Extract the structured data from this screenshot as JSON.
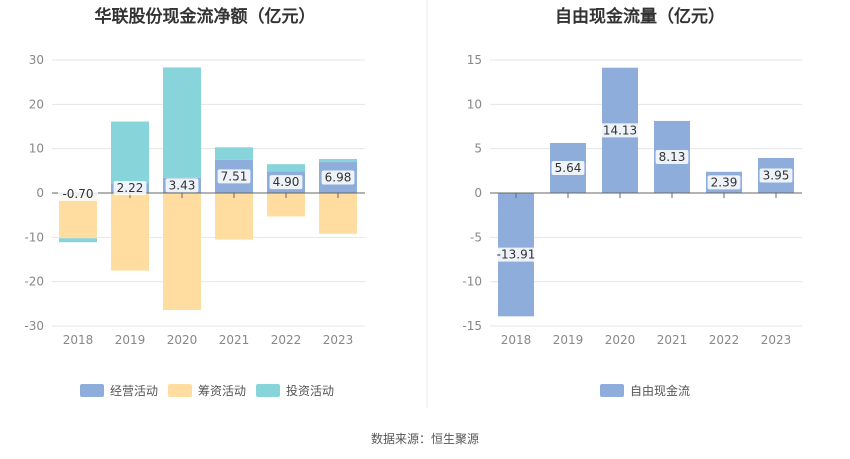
{
  "colors": {
    "operating": "#8FADDB",
    "financing": "#FFDCA0",
    "investing": "#87D5DA",
    "free_cash_flow": "#8FADDB",
    "grid": "#E6E6E6",
    "axis_text": "#888888",
    "divider": "#E8E8E8"
  },
  "source_text": "数据来源：恒生聚源",
  "chart_data": [
    {
      "type": "bar",
      "stacked": true,
      "title": "华联股份现金流净额（亿元）",
      "categories": [
        "2018",
        "2019",
        "2020",
        "2021",
        "2022",
        "2023"
      ],
      "ylim": [
        -30,
        30
      ],
      "yticks": [
        30,
        20,
        10,
        0,
        -10,
        -20,
        -30
      ],
      "grid": true,
      "legend_position": "bottom",
      "series": [
        {
          "name": "经营活动",
          "key": "operating",
          "values": [
            -0.7,
            2.22,
            3.43,
            7.51,
            4.9,
            6.98
          ],
          "labels": [
            "-0.70",
            "2.22",
            "3.43",
            "7.51",
            "4.90",
            "6.98"
          ]
        },
        {
          "name": "筹资活动",
          "key": "financing",
          "values": [
            -9.5,
            -17.5,
            -26.4,
            -10.5,
            -5.3,
            -9.2
          ]
        },
        {
          "name": "投资活动",
          "key": "investing",
          "values": [
            -0.9,
            13.9,
            24.9,
            2.8,
            1.6,
            0.7
          ]
        }
      ]
    },
    {
      "type": "bar",
      "title": "自由现金流量（亿元）",
      "categories": [
        "2018",
        "2019",
        "2020",
        "2021",
        "2022",
        "2023"
      ],
      "ylim": [
        -15,
        15
      ],
      "yticks": [
        15,
        10,
        5,
        0,
        -5,
        -10,
        -15
      ],
      "grid": true,
      "legend_position": "bottom",
      "series": [
        {
          "name": "自由现金流",
          "key": "free_cash_flow",
          "values": [
            -13.91,
            5.64,
            14.13,
            8.13,
            2.39,
            3.95
          ],
          "labels": [
            "-13.91",
            "5.64",
            "14.13",
            "8.13",
            "2.39",
            "3.95"
          ]
        }
      ]
    }
  ]
}
